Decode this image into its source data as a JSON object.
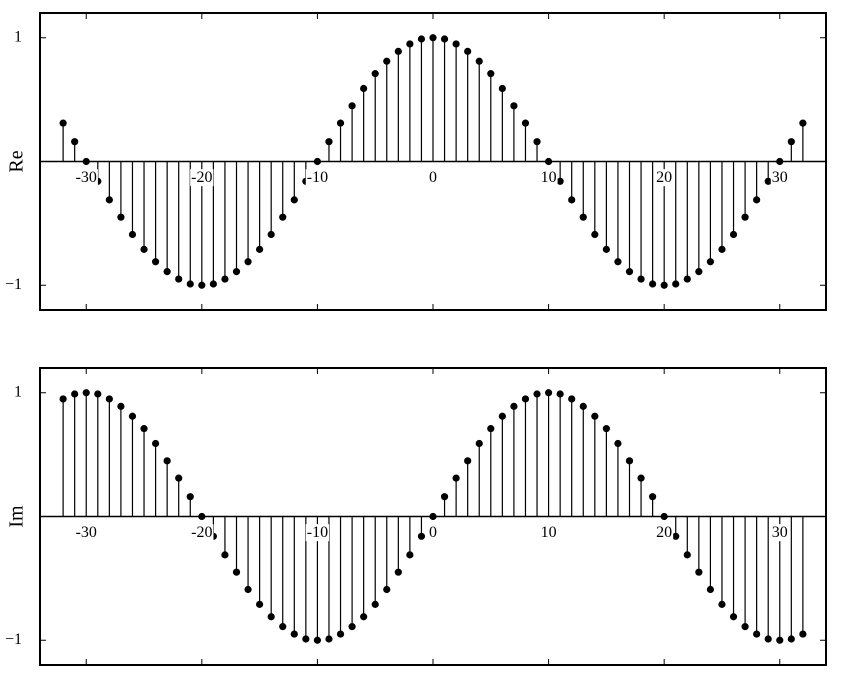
{
  "chart_data": [
    {
      "type": "stem",
      "ylabel": "Re",
      "color": "#000000",
      "x": [
        -32,
        -31,
        -30,
        -29,
        -28,
        -27,
        -26,
        -25,
        -24,
        -23,
        -22,
        -21,
        -20,
        -19,
        -18,
        -17,
        -16,
        -15,
        -14,
        -13,
        -12,
        -11,
        -10,
        -9,
        -8,
        -7,
        -6,
        -5,
        -4,
        -3,
        -2,
        -1,
        0,
        1,
        2,
        3,
        4,
        5,
        6,
        7,
        8,
        9,
        10,
        11,
        12,
        13,
        14,
        15,
        16,
        17,
        18,
        19,
        20,
        21,
        22,
        23,
        24,
        25,
        26,
        27,
        28,
        29,
        30,
        31,
        32
      ],
      "values": [
        0.31,
        0.16,
        0,
        -0.16,
        -0.31,
        -0.45,
        -0.59,
        -0.71,
        -0.81,
        -0.89,
        -0.95,
        -0.99,
        -1,
        -0.99,
        -0.95,
        -0.89,
        -0.81,
        -0.71,
        -0.59,
        -0.45,
        -0.31,
        -0.16,
        0,
        0.16,
        0.31,
        0.45,
        0.59,
        0.71,
        0.81,
        0.89,
        0.95,
        0.99,
        1,
        0.99,
        0.95,
        0.89,
        0.81,
        0.71,
        0.59,
        0.45,
        0.31,
        0.16,
        0,
        -0.16,
        -0.31,
        -0.45,
        -0.59,
        -0.71,
        -0.81,
        -0.89,
        -0.95,
        -0.99,
        -1,
        -0.99,
        -0.95,
        -0.89,
        -0.81,
        -0.71,
        -0.59,
        -0.45,
        -0.31,
        -0.16,
        0,
        0.16,
        0.31
      ],
      "xlim": [
        -34,
        34
      ],
      "ylim": [
        -1.2,
        1.2
      ],
      "xticks": [
        -30,
        -20,
        -10,
        0,
        10,
        20,
        30
      ],
      "yticks": [
        {
          "value": -1,
          "label": "−1"
        },
        1
      ]
    },
    {
      "type": "stem",
      "ylabel": "Im",
      "color": "#000000",
      "x": [
        -32,
        -31,
        -30,
        -29,
        -28,
        -27,
        -26,
        -25,
        -24,
        -23,
        -22,
        -21,
        -20,
        -19,
        -18,
        -17,
        -16,
        -15,
        -14,
        -13,
        -12,
        -11,
        -10,
        -9,
        -8,
        -7,
        -6,
        -5,
        -4,
        -3,
        -2,
        -1,
        0,
        1,
        2,
        3,
        4,
        5,
        6,
        7,
        8,
        9,
        10,
        11,
        12,
        13,
        14,
        15,
        16,
        17,
        18,
        19,
        20,
        21,
        22,
        23,
        24,
        25,
        26,
        27,
        28,
        29,
        30,
        31,
        32
      ],
      "values": [
        0.95,
        0.99,
        1,
        0.99,
        0.95,
        0.89,
        0.81,
        0.71,
        0.59,
        0.45,
        0.31,
        0.16,
        0,
        -0.16,
        -0.31,
        -0.45,
        -0.59,
        -0.71,
        -0.81,
        -0.89,
        -0.95,
        -0.99,
        -1,
        -0.99,
        -0.95,
        -0.89,
        -0.81,
        -0.71,
        -0.59,
        -0.45,
        -0.31,
        -0.16,
        0,
        0.16,
        0.31,
        0.45,
        0.59,
        0.71,
        0.81,
        0.89,
        0.95,
        0.99,
        1,
        0.99,
        0.95,
        0.89,
        0.81,
        0.71,
        0.59,
        0.45,
        0.31,
        0.16,
        0,
        -0.16,
        -0.31,
        -0.45,
        -0.59,
        -0.71,
        -0.81,
        -0.89,
        -0.95,
        -0.99,
        -1,
        -0.99,
        -0.95
      ],
      "xlim": [
        -34,
        34
      ],
      "ylim": [
        -1.2,
        1.2
      ],
      "xticks": [
        -30,
        -20,
        -10,
        0,
        10,
        20,
        30
      ],
      "yticks": [
        {
          "value": -1,
          "label": "−1"
        },
        1
      ]
    }
  ]
}
